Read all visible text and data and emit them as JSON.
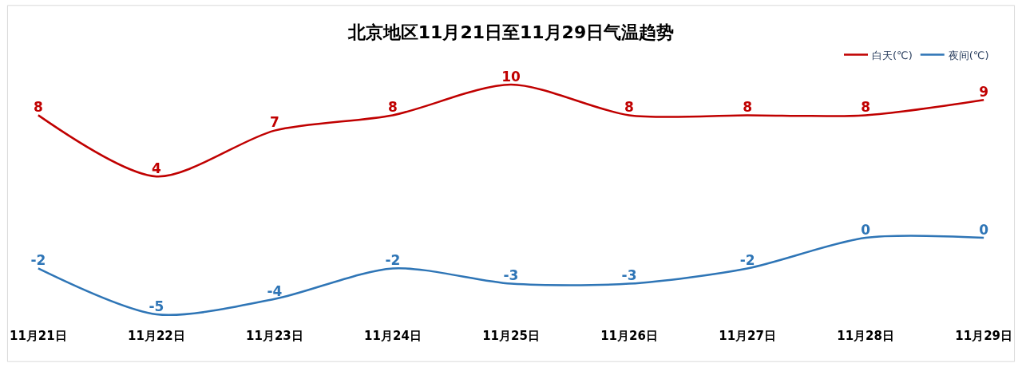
{
  "chart_data": {
    "type": "line",
    "title": "北京地区11月21日至11月29日气温趋势",
    "categories": [
      "11月21日",
      "11月22日",
      "11月23日",
      "11月24日",
      "11月25日",
      "11月26日",
      "11月27日",
      "11月28日",
      "11月29日"
    ],
    "series": [
      {
        "name": "白天(℃)",
        "color": "#c00000",
        "values": [
          8,
          4,
          7,
          8,
          10,
          8,
          8,
          8,
          9
        ]
      },
      {
        "name": "夜间(℃)",
        "color": "#2e75b6",
        "values": [
          -2,
          -5,
          -4,
          -2,
          -3,
          -3,
          -2,
          0,
          0
        ]
      }
    ],
    "data_labels": true,
    "legend": "top right",
    "marker": "none",
    "line_style": "solid"
  }
}
